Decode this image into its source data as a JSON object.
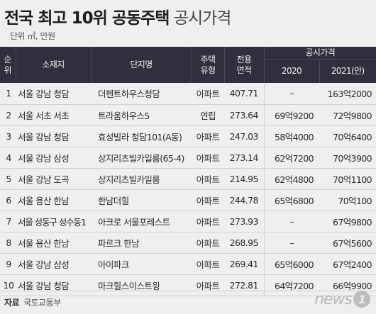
{
  "title_bold": "전국 최고 10위 공동주택",
  "title_light": "공시가격",
  "unit": "단위 ㎡, 만원",
  "headers": {
    "rank": "순위",
    "location": "소재지",
    "complex": "단지명",
    "type": "주택유형",
    "area": "전용면적",
    "price_group": "공시가격",
    "y2020": "2020",
    "y2021": "2021(안)"
  },
  "rows": [
    {
      "rank": "1",
      "location": "서울 강남 청담",
      "complex": "더펜트하우스청담",
      "type": "아파트",
      "area": "407.71",
      "p2020": "–",
      "p2021": "163억2000"
    },
    {
      "rank": "2",
      "location": "서울 서초 서초",
      "complex": "트라움하우스5",
      "type": "연립",
      "area": "273.64",
      "p2020": "69억9200",
      "p2021": "72억9800"
    },
    {
      "rank": "3",
      "location": "서울 강남 청담",
      "complex": "효성빌라 청담101(A동)",
      "type": "아파트",
      "area": "247.03",
      "p2020": "58억4000",
      "p2021": "70억6400"
    },
    {
      "rank": "4",
      "location": "서울 강남 삼성",
      "complex": "상지리츠빌카일룸(65-4)",
      "type": "아파트",
      "area": "273.14",
      "p2020": "62억7200",
      "p2021": "70억3900"
    },
    {
      "rank": "5",
      "location": "서울 강남 도곡",
      "complex": "상지리츠빌카일룸",
      "type": "아파트",
      "area": "214.95",
      "p2020": "62억4800",
      "p2021": "70억1100"
    },
    {
      "rank": "6",
      "location": "서울 용산 한남",
      "complex": "한남더힐",
      "type": "아파트",
      "area": "244.78",
      "p2020": "65억6800",
      "p2021": "70억100"
    },
    {
      "rank": "7",
      "location": "서울 성동구 성수동1",
      "complex": "아크로 서울포레스트",
      "type": "아파트",
      "area": "273.93",
      "p2020": "–",
      "p2021": "67억9800"
    },
    {
      "rank": "8",
      "location": "서울 용산 한남",
      "complex": "파르크 한남",
      "type": "아파트",
      "area": "268.95",
      "p2020": "–",
      "p2021": "67억5600"
    },
    {
      "rank": "9",
      "location": "서울 강남 삼성",
      "complex": "아이파크",
      "type": "아파트",
      "area": "269.41",
      "p2020": "65억6000",
      "p2021": "67억2400"
    },
    {
      "rank": "10",
      "location": "서울 강남 청담",
      "complex": "마크힐스이스트윙",
      "type": "아파트",
      "area": "272.81",
      "p2020": "64억7200",
      "p2021": "66억9900"
    }
  ],
  "source_label": "자료",
  "source_text": "국토교통부",
  "logo_text": "news",
  "logo_mark": "1"
}
